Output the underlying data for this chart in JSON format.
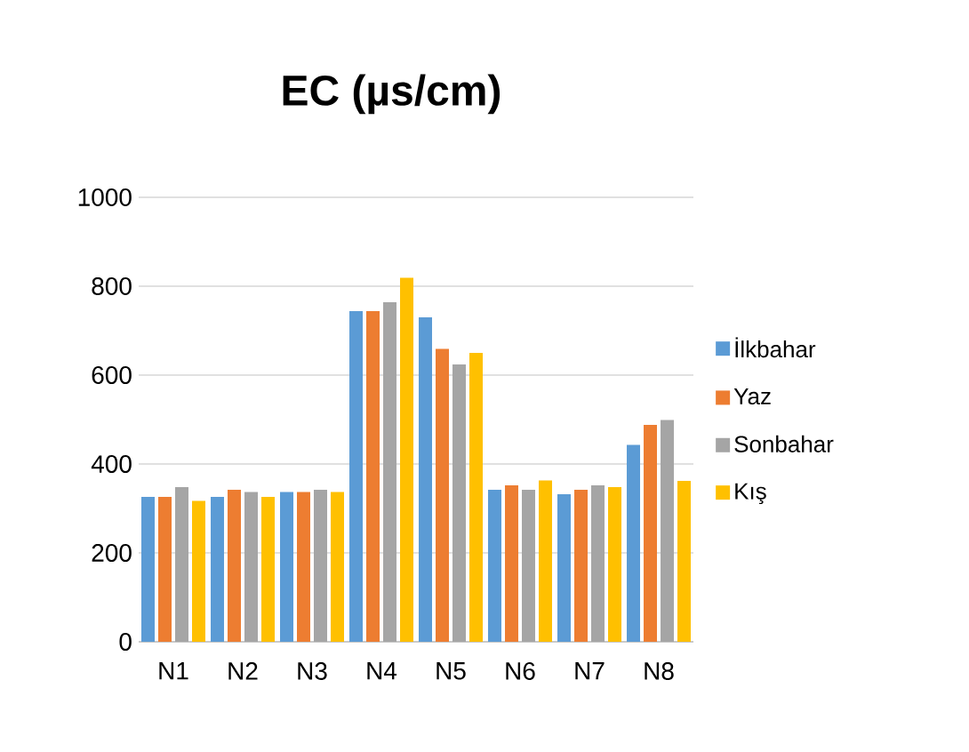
{
  "chart_data": {
    "type": "bar",
    "title": "EC (µs/cm)",
    "categories": [
      "N1",
      "N2",
      "N3",
      "N4",
      "N5",
      "N6",
      "N7",
      "N8"
    ],
    "series": [
      {
        "name": "İlkbahar",
        "color": "#5b9bd5",
        "values": [
          326,
          326,
          337,
          744,
          730,
          342,
          332,
          443
        ]
      },
      {
        "name": "Yaz",
        "color": "#ed7d31",
        "values": [
          326,
          342,
          337,
          744,
          659,
          352,
          342,
          488
        ]
      },
      {
        "name": "Sonbahar",
        "color": "#a5a5a5",
        "values": [
          348,
          337,
          342,
          764,
          624,
          342,
          352,
          499
        ]
      },
      {
        "name": "Kış",
        "color": "#ffc000",
        "values": [
          317,
          326,
          337,
          819,
          650,
          363,
          348,
          362
        ]
      }
    ],
    "ylim": [
      0,
      1000
    ],
    "yticks": [
      0,
      200,
      400,
      600,
      800,
      1000
    ],
    "grid": "y",
    "legend": "right"
  }
}
